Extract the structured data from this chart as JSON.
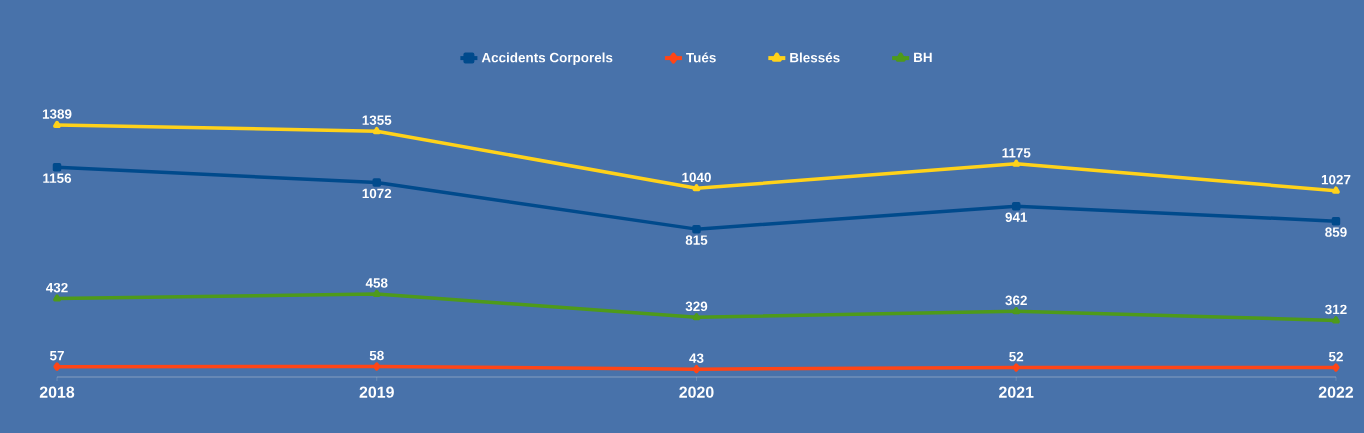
{
  "chart_data": {
    "type": "line",
    "categories": [
      "2018",
      "2019",
      "2020",
      "2021",
      "2022"
    ],
    "series": [
      {
        "name": "Accidents Corporels",
        "color": "#004a8c",
        "marker": "square",
        "values": [
          1156,
          1072,
          815,
          941,
          859
        ]
      },
      {
        "name": "Tués",
        "color": "#ff4516",
        "marker": "diamond",
        "values": [
          57,
          58,
          43,
          52,
          52
        ]
      },
      {
        "name": "Blessés",
        "color": "#ffd21a",
        "marker": "triangle",
        "values": [
          1389,
          1355,
          1040,
          1175,
          1027
        ]
      },
      {
        "name": "BH",
        "color": "#4e9a1a",
        "marker": "triangle",
        "values": [
          432,
          458,
          329,
          362,
          312
        ]
      }
    ],
    "data_labels": true,
    "legend": "top",
    "grid": false,
    "line_style": "solid"
  }
}
